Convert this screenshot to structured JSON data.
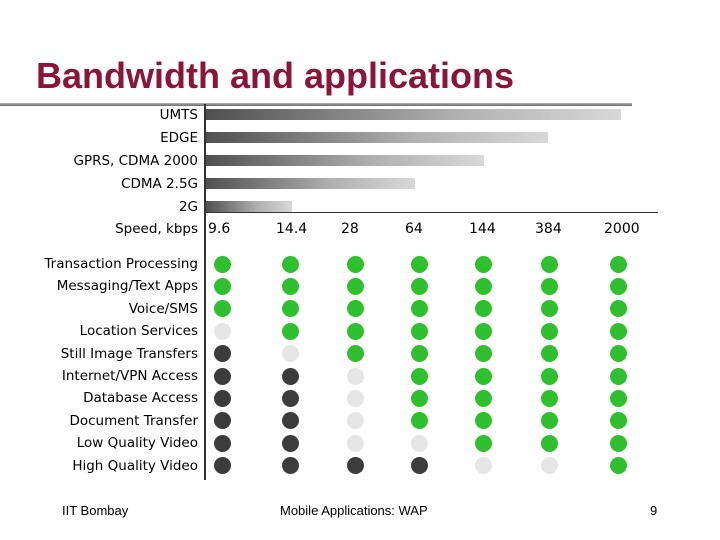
{
  "title": "Bandwidth and applications",
  "colors": {
    "title": "#8b1538",
    "supported": "#2fc02f",
    "marginal": "#e6e6e6",
    "unsupported": "#3c3c3c"
  },
  "technologies": [
    {
      "label": "UMTS",
      "bar_max_kbps": 2000
    },
    {
      "label": "EDGE",
      "bar_max_kbps": 384
    },
    {
      "label": "GPRS, CDMA 2000",
      "bar_max_kbps": 144
    },
    {
      "label": "CDMA 2.5G",
      "bar_max_kbps": 64
    },
    {
      "label": "2G",
      "bar_max_kbps": 9.6
    }
  ],
  "speed_label": "Speed, kbps",
  "speeds": [
    "9.6",
    "14.4",
    "28",
    "64",
    "144",
    "384",
    "2000"
  ],
  "applications": [
    {
      "label": "Transaction Processing",
      "status": [
        "g",
        "g",
        "g",
        "g",
        "g",
        "g",
        "g"
      ]
    },
    {
      "label": "Messaging/Text Apps",
      "status": [
        "g",
        "g",
        "g",
        "g",
        "g",
        "g",
        "g"
      ]
    },
    {
      "label": "Voice/SMS",
      "status": [
        "g",
        "g",
        "g",
        "g",
        "g",
        "g",
        "g"
      ]
    },
    {
      "label": "Location Services",
      "status": [
        "l",
        "g",
        "g",
        "g",
        "g",
        "g",
        "g"
      ]
    },
    {
      "label": "Still Image Transfers",
      "status": [
        "d",
        "l",
        "g",
        "g",
        "g",
        "g",
        "g"
      ]
    },
    {
      "label": "Internet/VPN Access",
      "status": [
        "d",
        "d",
        "l",
        "g",
        "g",
        "g",
        "g"
      ]
    },
    {
      "label": "Database Access",
      "status": [
        "d",
        "d",
        "l",
        "g",
        "g",
        "g",
        "g"
      ]
    },
    {
      "label": "Document Transfer",
      "status": [
        "d",
        "d",
        "l",
        "g",
        "g",
        "g",
        "g"
      ]
    },
    {
      "label": "Low Quality Video",
      "status": [
        "d",
        "d",
        "l",
        "l",
        "g",
        "g",
        "g"
      ]
    },
    {
      "label": "High Quality Video",
      "status": [
        "d",
        "d",
        "d",
        "d",
        "l",
        "l",
        "g"
      ]
    }
  ],
  "footer": {
    "left": "IIT Bombay",
    "center": "Mobile Applications: WAP",
    "page": "9"
  }
}
